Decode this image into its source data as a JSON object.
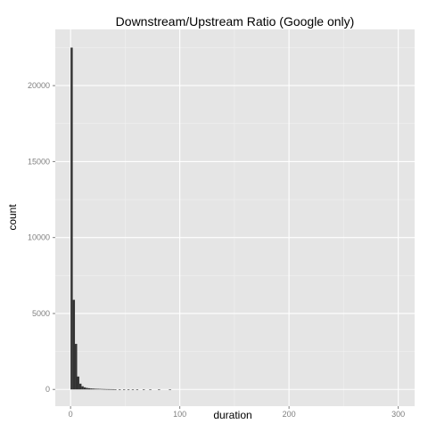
{
  "chart_data": {
    "type": "bar",
    "title": "Downstream/Upstream Ratio (Google only)",
    "xlabel": "duration",
    "ylabel": "count",
    "xlim": [
      -14,
      315
    ],
    "ylim": [
      -1100,
      23700
    ],
    "x_ticks": [
      0,
      100,
      200,
      300
    ],
    "y_ticks": [
      0,
      5000,
      10000,
      15000,
      20000
    ],
    "x_minor_gridlines": [
      50,
      150,
      250
    ],
    "y_minor_gridlines": [
      2500,
      7500,
      12500,
      17500,
      22500
    ],
    "grid": true,
    "bin_width": 2,
    "bins": [
      {
        "x0": 0,
        "count": 22500
      },
      {
        "x0": 2,
        "count": 5900
      },
      {
        "x0": 4,
        "count": 3000
      },
      {
        "x0": 6,
        "count": 850
      },
      {
        "x0": 8,
        "count": 380
      },
      {
        "x0": 10,
        "count": 210
      },
      {
        "x0": 12,
        "count": 140
      },
      {
        "x0": 14,
        "count": 100
      },
      {
        "x0": 16,
        "count": 80
      },
      {
        "x0": 18,
        "count": 65
      },
      {
        "x0": 20,
        "count": 55
      },
      {
        "x0": 22,
        "count": 45
      },
      {
        "x0": 24,
        "count": 40
      },
      {
        "x0": 26,
        "count": 35
      },
      {
        "x0": 28,
        "count": 30
      },
      {
        "x0": 30,
        "count": 26
      },
      {
        "x0": 32,
        "count": 22
      },
      {
        "x0": 34,
        "count": 20
      },
      {
        "x0": 36,
        "count": 18
      },
      {
        "x0": 38,
        "count": 16
      },
      {
        "x0": 40,
        "count": 14
      },
      {
        "x0": 44,
        "count": 12
      },
      {
        "x0": 48,
        "count": 10
      },
      {
        "x0": 52,
        "count": 8
      },
      {
        "x0": 56,
        "count": 7
      },
      {
        "x0": 60,
        "count": 6
      },
      {
        "x0": 66,
        "count": 5
      },
      {
        "x0": 72,
        "count": 4
      },
      {
        "x0": 80,
        "count": 3
      },
      {
        "x0": 90,
        "count": 2
      }
    ],
    "colors": {
      "panel_background": "#e5e5e5",
      "gridline": "#ffffff",
      "bar_fill": "#333333",
      "tick_label": "#7f7f7f",
      "text": "#000000"
    }
  }
}
